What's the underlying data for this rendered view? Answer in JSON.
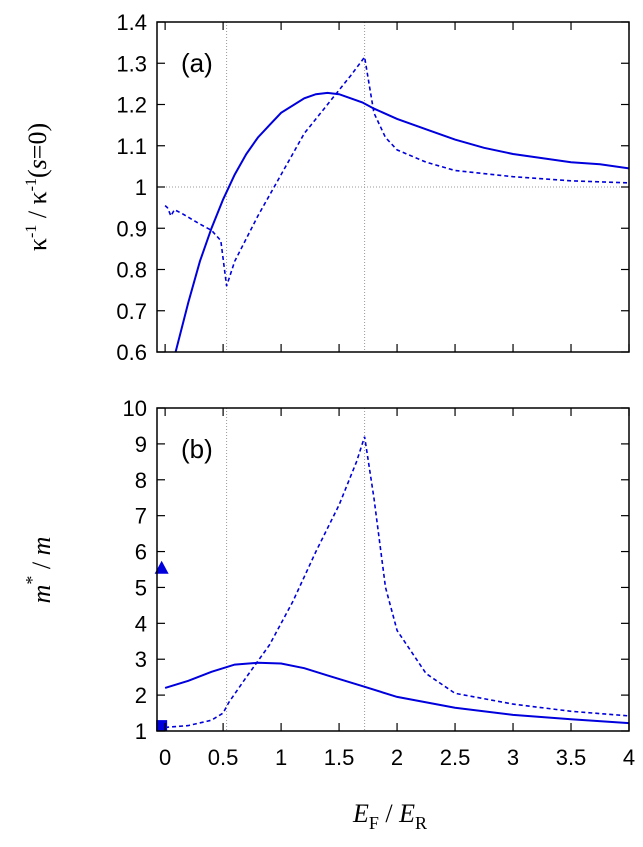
{
  "chart_data": [
    {
      "type": "line",
      "label": "(a)",
      "ylabel": [
        "κ",
        "-1",
        " / κ",
        "-1",
        "(",
        "s",
        "=0)"
      ],
      "xlim": [
        -0.07,
        4
      ],
      "xticks": [
        0,
        0.5,
        1,
        1.5,
        2,
        2.5,
        3,
        3.5,
        4
      ],
      "ylim": [
        0.6,
        1.4
      ],
      "yticks": [
        0.6,
        0.7,
        0.8,
        0.9,
        1,
        1.1,
        1.2,
        1.3,
        1.4
      ],
      "vlines": [
        0.53,
        1.72
      ],
      "hlines": [
        1
      ],
      "series": [
        {
          "color": "#0000dd",
          "style": "solid",
          "x": [
            0.09,
            0.2,
            0.3,
            0.4,
            0.5,
            0.6,
            0.7,
            0.8,
            0.9,
            1.0,
            1.2,
            1.3,
            1.4,
            1.5,
            1.6,
            1.7,
            1.8,
            2.0,
            2.25,
            2.5,
            2.75,
            3.0,
            3.25,
            3.5,
            3.75,
            4.0
          ],
          "values": [
            0.6,
            0.72,
            0.82,
            0.9,
            0.97,
            1.03,
            1.08,
            1.12,
            1.15,
            1.18,
            1.215,
            1.225,
            1.228,
            1.225,
            1.215,
            1.205,
            1.19,
            1.165,
            1.14,
            1.115,
            1.095,
            1.08,
            1.07,
            1.06,
            1.055,
            1.045
          ]
        },
        {
          "color": "#0000dd",
          "style": "dashed",
          "x": [
            0,
            0.02,
            0.05,
            0.08,
            0.15,
            0.3,
            0.4,
            0.48,
            0.53,
            0.6,
            0.8,
            1.0,
            1.2,
            1.4,
            1.6,
            1.72,
            1.8,
            1.9,
            2.0,
            2.25,
            2.5,
            3.0,
            3.5,
            4.0
          ],
          "values": [
            0.955,
            0.95,
            0.93,
            0.945,
            0.935,
            0.91,
            0.895,
            0.87,
            0.76,
            0.82,
            0.93,
            1.03,
            1.13,
            1.2,
            1.27,
            1.315,
            1.18,
            1.12,
            1.09,
            1.06,
            1.04,
            1.025,
            1.015,
            1.01
          ]
        }
      ]
    },
    {
      "type": "line",
      "label": "(b)",
      "ylabel": [
        "m",
        "*",
        " / ",
        "m"
      ],
      "xlabel": [
        "E",
        "F",
        " / ",
        "E",
        "R"
      ],
      "xlim": [
        -0.07,
        4
      ],
      "xticks": [
        0,
        0.5,
        1,
        1.5,
        2,
        2.5,
        3,
        3.5,
        4
      ],
      "ylim": [
        1,
        10
      ],
      "yticks": [
        1,
        2,
        3,
        4,
        5,
        6,
        7,
        8,
        9,
        10
      ],
      "vlines": [
        0.53,
        1.72
      ],
      "series": [
        {
          "color": "#0000dd",
          "style": "solid",
          "x": [
            0,
            0.2,
            0.4,
            0.6,
            0.8,
            1.0,
            1.2,
            1.4,
            1.7,
            2.0,
            2.5,
            3.0,
            3.5,
            4.0
          ],
          "values": [
            2.2,
            2.4,
            2.65,
            2.85,
            2.9,
            2.88,
            2.75,
            2.55,
            2.25,
            1.95,
            1.65,
            1.45,
            1.33,
            1.22
          ]
        },
        {
          "color": "#0000dd",
          "style": "dashed",
          "x": [
            0,
            0.2,
            0.4,
            0.5,
            0.55,
            0.7,
            0.9,
            1.1,
            1.3,
            1.5,
            1.65,
            1.72,
            1.8,
            1.9,
            2.0,
            2.25,
            2.5,
            3.0,
            3.5,
            4.0
          ],
          "values": [
            1.1,
            1.15,
            1.3,
            1.5,
            1.8,
            2.5,
            3.4,
            4.6,
            6.0,
            7.3,
            8.5,
            9.2,
            7.5,
            5.0,
            3.8,
            2.6,
            2.05,
            1.75,
            1.55,
            1.42
          ]
        }
      ],
      "points": [
        {
          "x": -0.03,
          "y": 5.55,
          "marker": "triangle",
          "color": "#0000dd"
        },
        {
          "x": -0.03,
          "y": 1.15,
          "marker": "square",
          "color": "#0000dd"
        }
      ]
    }
  ]
}
